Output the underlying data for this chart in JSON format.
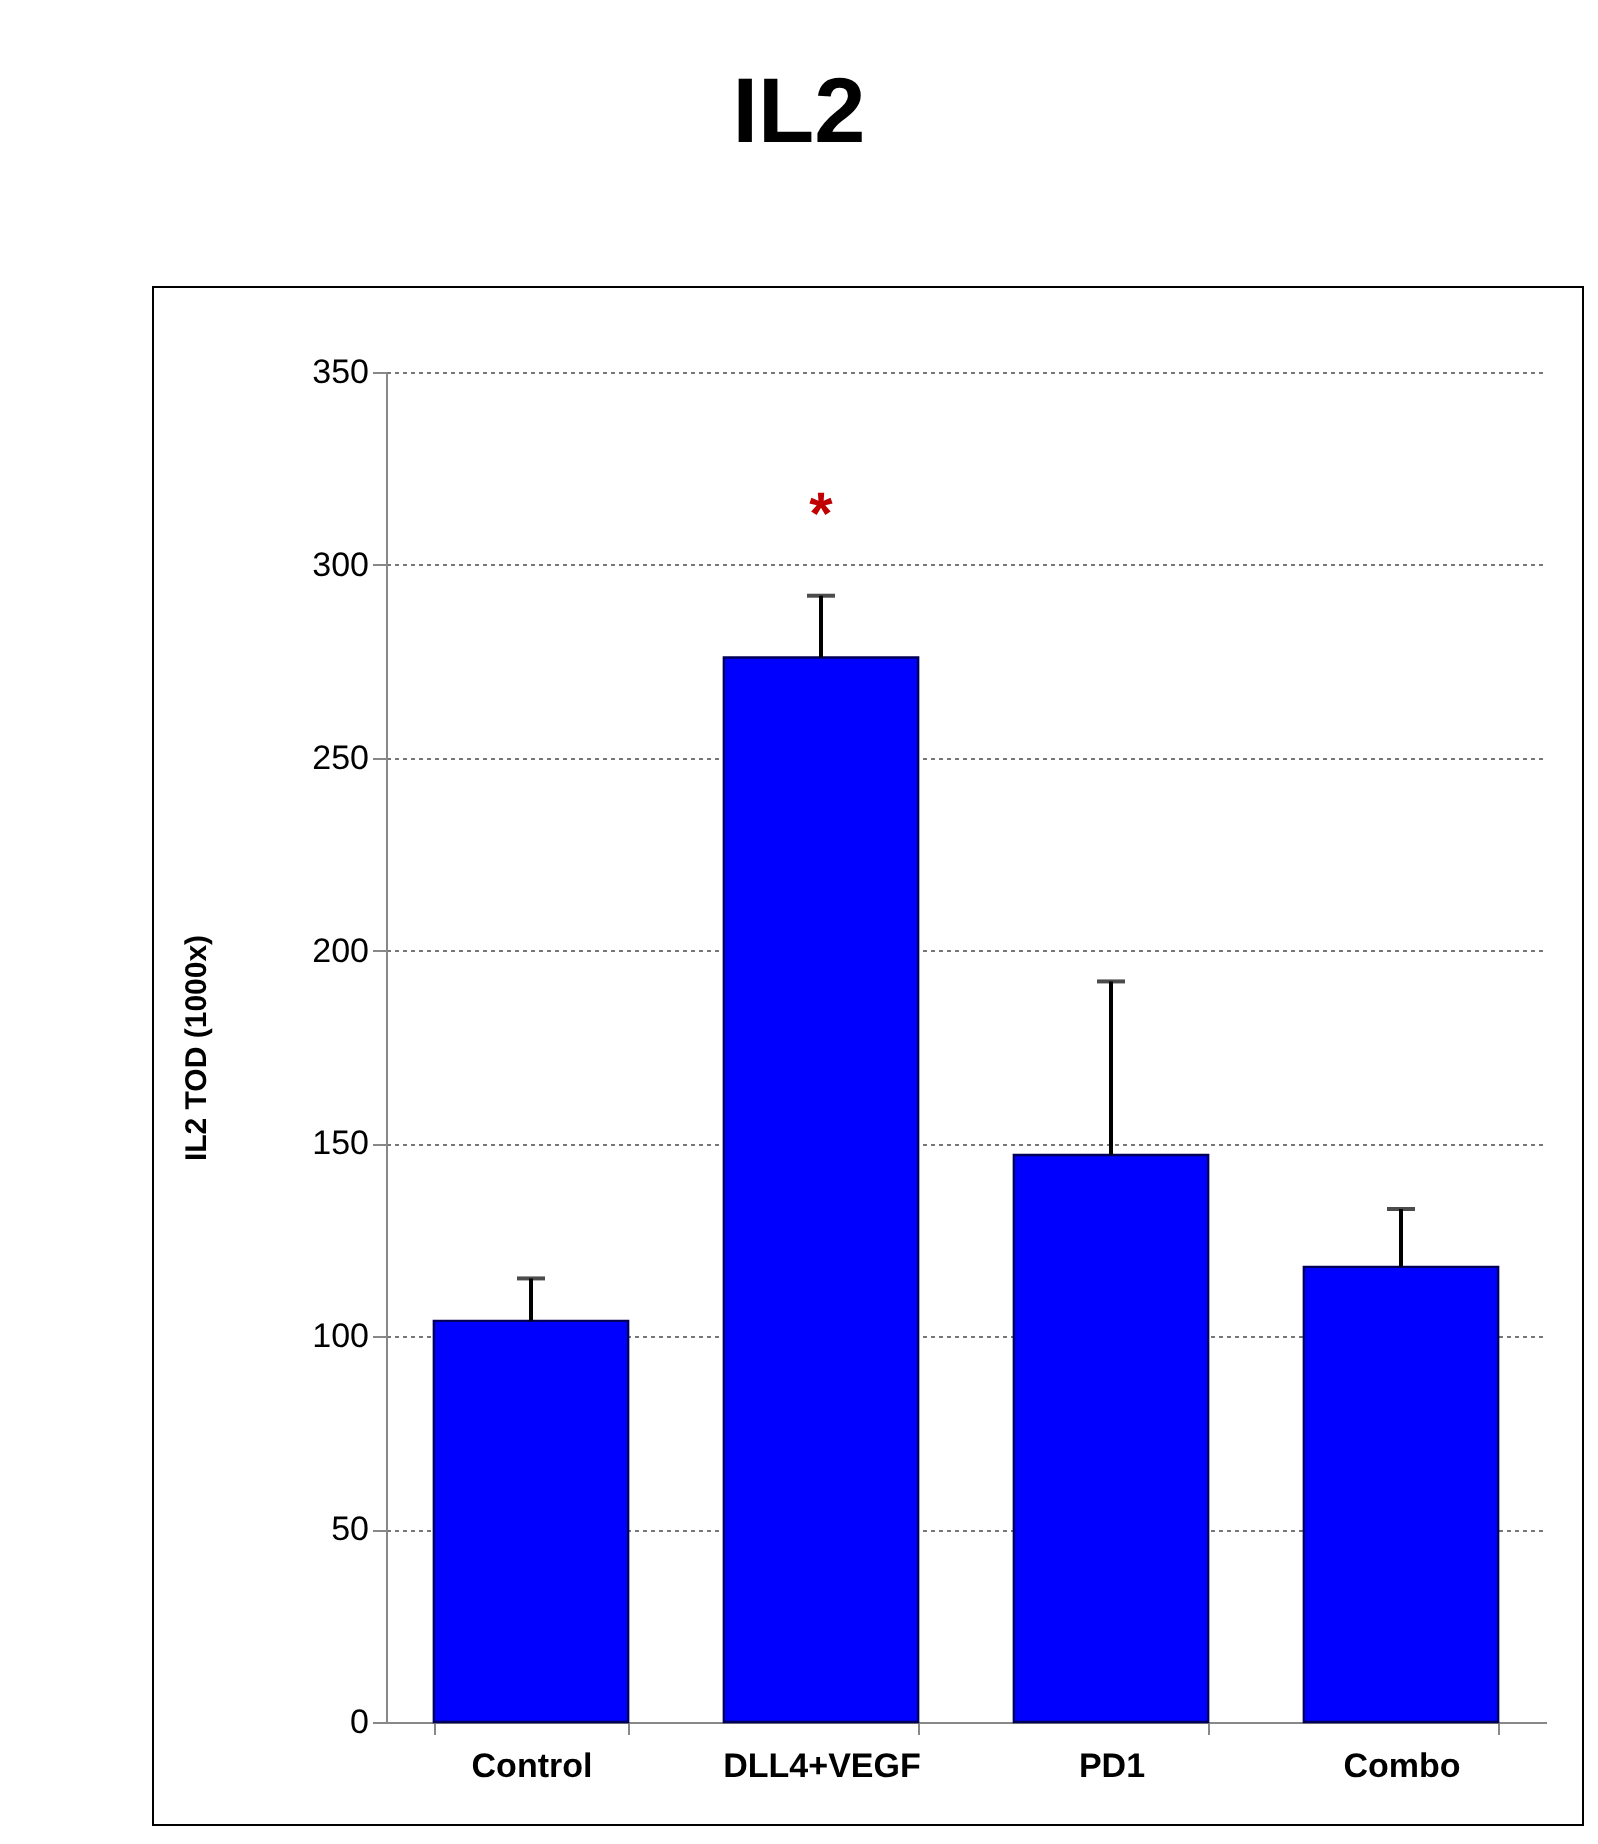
{
  "chart_data": {
    "type": "bar",
    "title": "IL2",
    "ylabel": "IL2 TOD (1000x)",
    "categories": [
      "Control",
      "DLL4+VEGF",
      "PD1",
      "Combo"
    ],
    "values": [
      104,
      276,
      147,
      118
    ],
    "color": "#0000ff",
    "errors": [
      [
        104,
        115
      ],
      [
        276,
        292
      ],
      [
        147,
        192
      ],
      [
        118,
        133
      ]
    ],
    "ylim": [
      0,
      350
    ],
    "yticks": [
      0,
      50,
      100,
      150,
      200,
      250,
      300,
      350
    ],
    "grid": "y",
    "annotations": [
      "*"
    ]
  }
}
